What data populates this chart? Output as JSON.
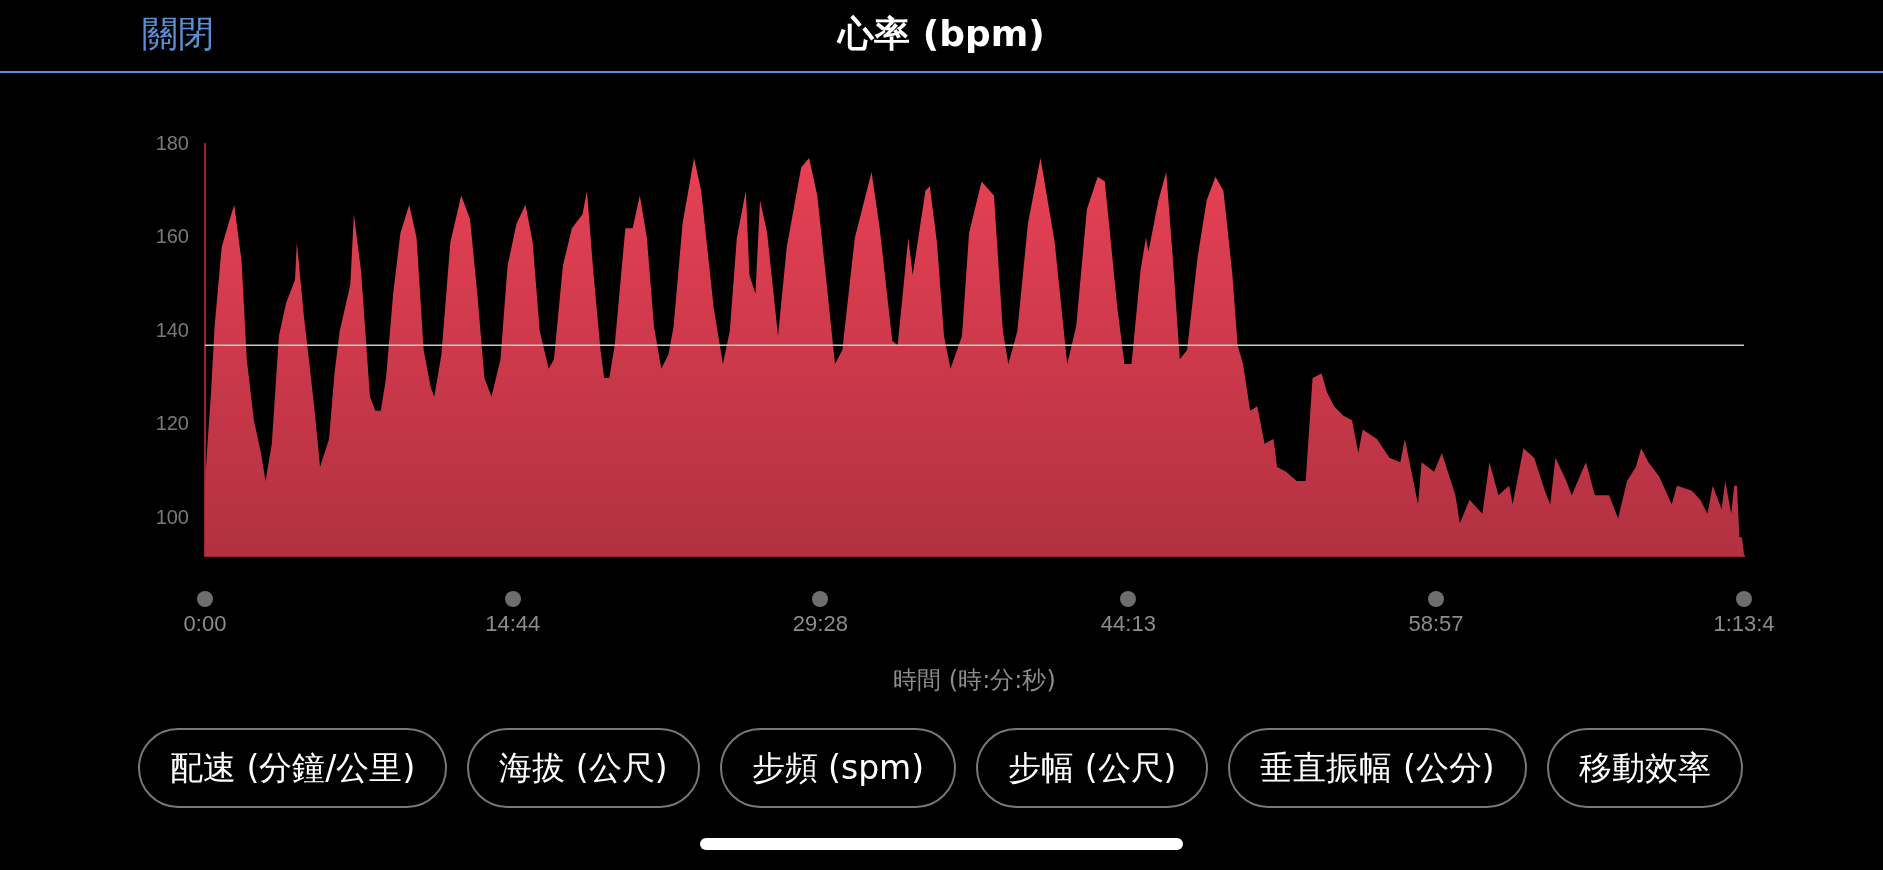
{
  "chart_data": {
    "type": "area",
    "title": "心率 (bpm)",
    "xlabel": "時間 (時:分:秒)",
    "annotations": [
      "關閉",
      "配速 (分鐘/公里)",
      "海拔 (公尺)",
      "步頻 (spm)",
      "步幅 (公尺)",
      "垂直振幅 (公分)",
      "移動效率"
    ],
    "xlim": [
      0,
      73.7
    ],
    "xticks": [
      {
        "value": 0,
        "label": "0:00"
      },
      {
        "value": 14.74,
        "label": "14:44"
      },
      {
        "value": 29.47,
        "label": "29:28"
      },
      {
        "value": 44.22,
        "label": "44:13"
      },
      {
        "value": 58.95,
        "label": "58:57"
      },
      {
        "value": 73.7,
        "label": "1:13:4"
      }
    ],
    "ylim": [
      92,
      180
    ],
    "yticks": [
      100,
      120,
      140,
      160,
      180
    ],
    "grid": false,
    "legend": false,
    "marker": "none",
    "ref_lines": [
      {
        "axis": "y",
        "value": 137,
        "color": "#c8c8c8"
      }
    ],
    "series": [
      {
        "color": "#d03a4c",
        "x": [
          0,
          0.12,
          0.29,
          0.46,
          0.8,
          1.06,
          1.4,
          1.75,
          2.0,
          2.34,
          2.68,
          2.9,
          3.2,
          3.54,
          3.88,
          4.31,
          4.4,
          4.74,
          5.0,
          5.25,
          5.51,
          5.94,
          6.2,
          6.45,
          6.96,
          7.13,
          7.47,
          7.9,
          8.16,
          8.42,
          8.67,
          9.01,
          9.36,
          9.78,
          10.13,
          10.47,
          10.81,
          10.98,
          11.32,
          11.75,
          12.27,
          12.69,
          13.04,
          13.38,
          13.72,
          14.15,
          14.49,
          14.92,
          15.35,
          15.69,
          16.03,
          16.46,
          16.71,
          17.14,
          17.57,
          18.08,
          18.29,
          18.59,
          18.94,
          19.11,
          19.36,
          19.62,
          20.13,
          20.48,
          20.82,
          21.16,
          21.5,
          21.85,
          22.19,
          22.44,
          22.87,
          23.42,
          23.76,
          24.36,
          24.8,
          25.13,
          25.47,
          25.9,
          26.07,
          26.36,
          26.58,
          26.92,
          27.44,
          27.86,
          28.55,
          28.93,
          29.32,
          29.75,
          30.17,
          30.52,
          31.12,
          31.92,
          32.31,
          32.91,
          33.17,
          33.68,
          33.89,
          34.5,
          34.71,
          35.05,
          35.39,
          35.7,
          36.25,
          36.59,
          37.19,
          37.78,
          38.21,
          38.47,
          38.9,
          39.41,
          40.01,
          40.69,
          41.29,
          41.72,
          42.23,
          42.75,
          43.09,
          43.69,
          44.03,
          44.37,
          44.8,
          45.06,
          45.18,
          45.66,
          46.03,
          46.34,
          46.68,
          47.03,
          47.54,
          47.97,
          48.39,
          48.77,
          48.94,
          49.2,
          49.45,
          49.71,
          50.05,
          50.39,
          50.74,
          51.17,
          51.34,
          51.77,
          52.28,
          52.71,
          53.04,
          53.47,
          53.73,
          54.07,
          54.5,
          54.93,
          55.23,
          55.44,
          56.12,
          56.72,
          57.24,
          57.46,
          58.09,
          58.26,
          58.86,
          59.23,
          59.88,
          60.09,
          60.56,
          61.17,
          61.51,
          61.94,
          62.45,
          62.62,
          63.14,
          63.65,
          64.16,
          64.42,
          64.67,
          65.19,
          65.45,
          66.13,
          66.56,
          67.24,
          67.67,
          68.1,
          68.52,
          68.78,
          69.12,
          69.64,
          70.24,
          70.49,
          71.18,
          71.61,
          71.95,
          72.2,
          72.63,
          72.8,
          73.09,
          73.23,
          73.36,
          73.48,
          73.6,
          73.7
        ],
        "values": [
          107,
          116,
          127,
          141,
          158,
          162,
          167,
          155,
          134,
          121,
          114,
          108,
          116,
          139,
          146,
          151,
          159,
          143,
          133,
          123,
          111,
          117,
          131,
          140,
          150,
          165,
          153,
          126,
          123,
          123,
          130,
          148,
          161,
          167,
          160,
          136,
          128,
          126,
          135,
          159,
          169,
          164,
          148,
          130,
          126,
          134,
          154,
          163,
          167,
          159,
          140,
          132,
          134,
          154,
          162,
          165,
          170,
          153,
          136,
          130,
          130,
          137,
          162,
          162,
          169,
          160,
          141,
          132,
          135,
          141,
          163,
          177,
          170,
          145,
          133,
          140,
          160,
          170,
          152,
          148,
          168,
          161,
          139,
          158,
          175,
          177,
          169,
          151,
          133,
          136,
          160,
          174,
          162,
          138,
          137,
          160,
          152,
          170,
          171,
          159,
          139,
          132,
          139,
          161,
          172,
          169,
          140,
          133,
          140,
          163,
          177,
          159,
          133,
          141,
          166,
          173,
          172,
          145,
          133,
          133,
          153,
          160,
          157,
          168,
          174,
          156,
          134,
          136,
          156,
          168,
          173,
          170,
          163,
          152,
          137,
          133,
          123,
          124,
          116,
          117,
          111,
          110,
          108,
          108,
          130,
          131,
          127,
          124,
          122,
          121,
          114,
          119,
          117,
          113,
          112,
          117,
          103,
          112,
          110,
          114,
          105,
          99,
          104,
          101,
          112,
          105,
          107,
          103,
          115,
          113,
          106,
          103,
          113,
          108,
          105,
          112,
          105,
          105,
          100,
          108,
          111,
          115,
          112,
          109,
          103,
          107,
          106,
          104,
          101,
          107,
          102,
          108,
          101,
          107,
          107,
          96,
          96,
          92.4
        ]
      }
    ]
  }
}
